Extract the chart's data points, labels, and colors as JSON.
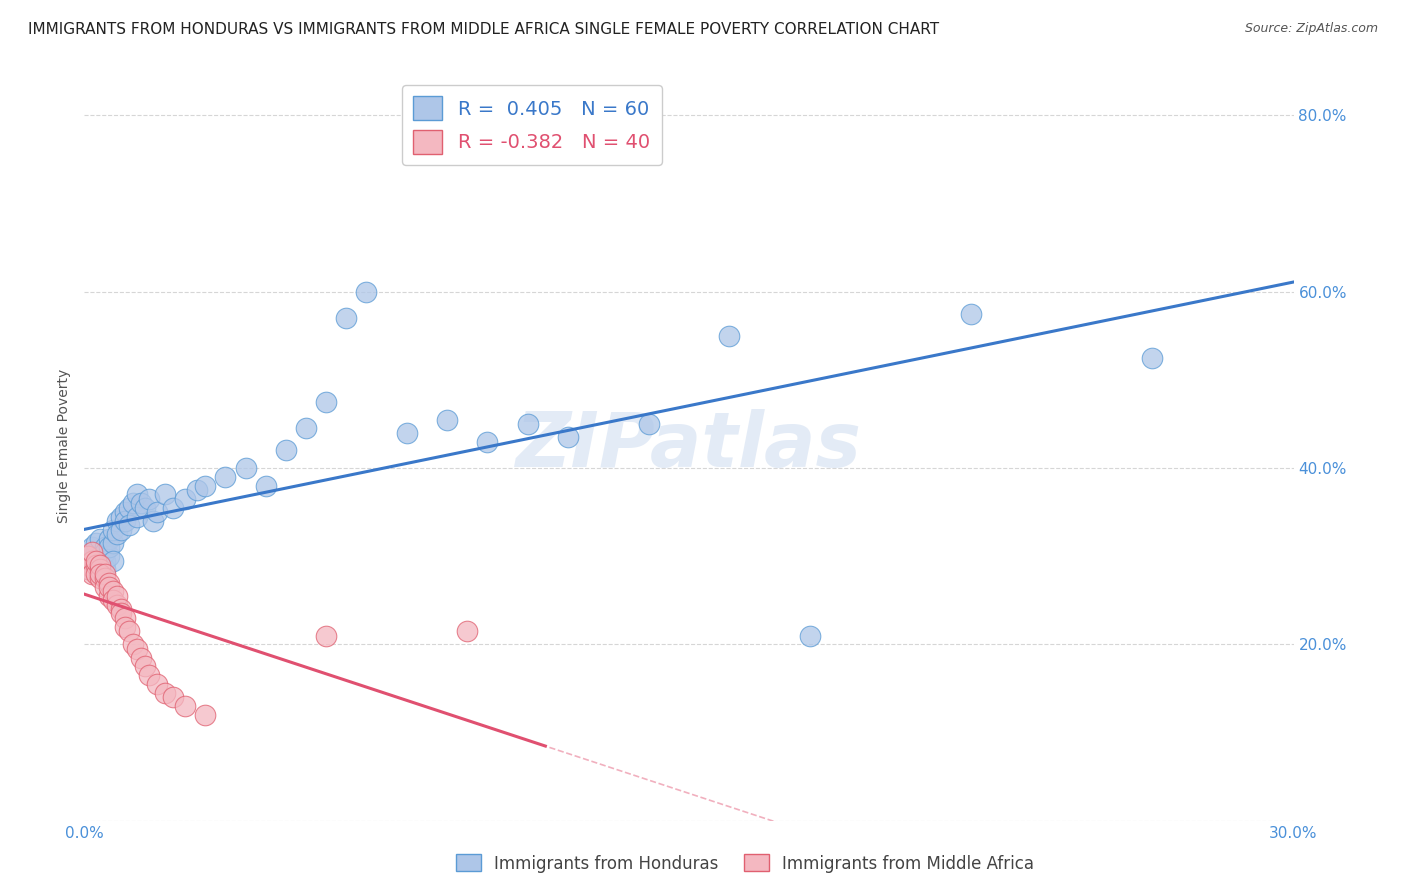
{
  "title": "IMMIGRANTS FROM HONDURAS VS IMMIGRANTS FROM MIDDLE AFRICA SINGLE FEMALE POVERTY CORRELATION CHART",
  "source": "Source: ZipAtlas.com",
  "ylabel": "Single Female Poverty",
  "xlim": [
    0.0,
    0.3
  ],
  "ylim": [
    0.0,
    0.85
  ],
  "background_color": "#ffffff",
  "grid_color": "#cccccc",
  "axis_color": "#4a90d9",
  "title_fontsize": 11,
  "axis_label_fontsize": 10,
  "tick_fontsize": 11,
  "watermark": "ZIPatlas",
  "series_honduras": {
    "color": "#aec6e8",
    "edge_color": "#5b9bd5",
    "trend_color": "#3a78c9",
    "x": [
      0.001,
      0.001,
      0.002,
      0.002,
      0.002,
      0.003,
      0.003,
      0.003,
      0.004,
      0.004,
      0.004,
      0.005,
      0.005,
      0.005,
      0.005,
      0.006,
      0.006,
      0.006,
      0.007,
      0.007,
      0.007,
      0.008,
      0.008,
      0.009,
      0.009,
      0.01,
      0.01,
      0.011,
      0.011,
      0.012,
      0.013,
      0.013,
      0.014,
      0.015,
      0.016,
      0.017,
      0.018,
      0.02,
      0.022,
      0.025,
      0.028,
      0.03,
      0.035,
      0.04,
      0.045,
      0.05,
      0.055,
      0.06,
      0.065,
      0.07,
      0.08,
      0.09,
      0.1,
      0.11,
      0.12,
      0.14,
      0.16,
      0.18,
      0.22,
      0.265
    ],
    "y": [
      0.285,
      0.295,
      0.3,
      0.31,
      0.29,
      0.285,
      0.305,
      0.315,
      0.3,
      0.32,
      0.29,
      0.31,
      0.295,
      0.285,
      0.305,
      0.3,
      0.32,
      0.31,
      0.315,
      0.33,
      0.295,
      0.34,
      0.325,
      0.345,
      0.33,
      0.35,
      0.34,
      0.355,
      0.335,
      0.36,
      0.345,
      0.37,
      0.36,
      0.355,
      0.365,
      0.34,
      0.35,
      0.37,
      0.355,
      0.365,
      0.375,
      0.38,
      0.39,
      0.4,
      0.38,
      0.42,
      0.445,
      0.475,
      0.57,
      0.6,
      0.44,
      0.455,
      0.43,
      0.45,
      0.435,
      0.45,
      0.55,
      0.21,
      0.575,
      0.525
    ]
  },
  "series_middle_africa": {
    "color": "#f4b8c1",
    "edge_color": "#e06070",
    "trend_color": "#e05070",
    "trend_solid_end": 0.115,
    "x": [
      0.001,
      0.001,
      0.001,
      0.002,
      0.002,
      0.002,
      0.003,
      0.003,
      0.003,
      0.004,
      0.004,
      0.004,
      0.004,
      0.005,
      0.005,
      0.005,
      0.006,
      0.006,
      0.006,
      0.007,
      0.007,
      0.008,
      0.008,
      0.009,
      0.009,
      0.01,
      0.01,
      0.011,
      0.012,
      0.013,
      0.014,
      0.015,
      0.016,
      0.018,
      0.02,
      0.022,
      0.025,
      0.03,
      0.06,
      0.095
    ],
    "y": [
      0.29,
      0.3,
      0.285,
      0.295,
      0.28,
      0.305,
      0.29,
      0.28,
      0.295,
      0.285,
      0.275,
      0.29,
      0.28,
      0.275,
      0.265,
      0.28,
      0.27,
      0.255,
      0.265,
      0.26,
      0.25,
      0.245,
      0.255,
      0.24,
      0.235,
      0.23,
      0.22,
      0.215,
      0.2,
      0.195,
      0.185,
      0.175,
      0.165,
      0.155,
      0.145,
      0.14,
      0.13,
      0.12,
      0.21,
      0.215
    ]
  },
  "hon_trend_intercept": 0.295,
  "hon_trend_slope": 0.95,
  "maf_trend_intercept": 0.31,
  "maf_trend_slope": -1.65
}
